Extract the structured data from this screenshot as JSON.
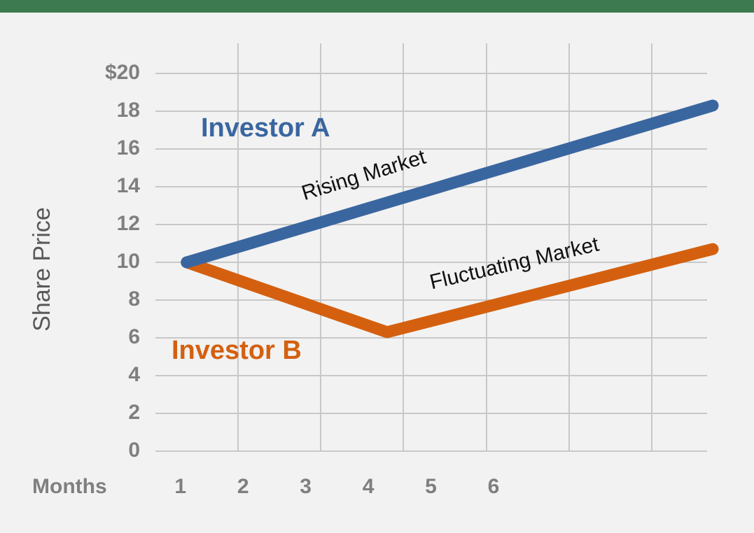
{
  "chart_data": {
    "type": "line",
    "xlabel": "Months",
    "ylabel": "Share Price",
    "xlim": [
      0.6,
      9.5
    ],
    "xticks": [
      1,
      2,
      3,
      4,
      5,
      6
    ],
    "ylim": [
      0,
      20
    ],
    "yticks": [
      0,
      2,
      4,
      6,
      8,
      10,
      12,
      14,
      16,
      18,
      {
        "value": 20,
        "label": "$20"
      }
    ],
    "grid": true,
    "series": [
      {
        "name": "Investor A",
        "color": "#3a66a0",
        "x": [
          1.1,
          9.5
        ],
        "values": [
          10,
          18.3
        ]
      },
      {
        "name": "Investor B",
        "color": "#d4600f",
        "x": [
          1.1,
          4.3,
          9.5
        ],
        "values": [
          10,
          6.3,
          10.7
        ]
      }
    ],
    "annotations": [
      "Rising Market",
      "Fluctuating Market"
    ]
  }
}
